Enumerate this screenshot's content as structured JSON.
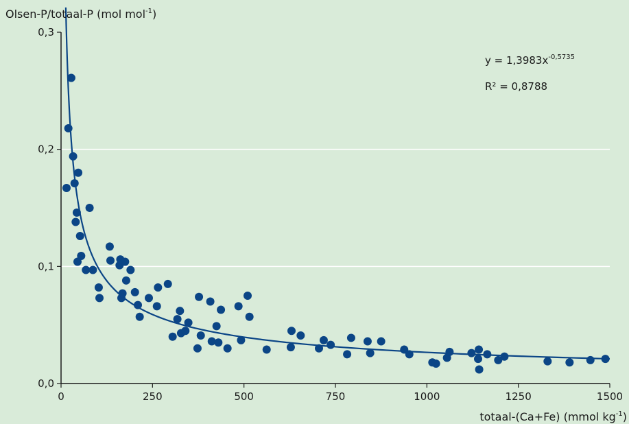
{
  "chart_data": {
    "type": "scatter",
    "ylabel": "Olsen-P/totaal-P (mol mol",
    "ylabel_sup": "-1",
    "ylabel_end": ")",
    "xlabel": "totaal-(Ca+Fe) (mmol kg",
    "xlabel_sup": "-1",
    "xlabel_end": ")",
    "xlim": [
      0,
      1500
    ],
    "ylim": [
      0,
      0.3
    ],
    "x_ticks": [
      0,
      250,
      500,
      750,
      1000,
      1250,
      1500
    ],
    "x_tick_labels": [
      "0",
      "250",
      "500",
      "750",
      "1000",
      "1250",
      "1500"
    ],
    "y_ticks": [
      0,
      0.1,
      0.2,
      0.3
    ],
    "y_tick_labels": [
      "0,0",
      "0,1",
      "0,2",
      "0,3"
    ],
    "gridlines_y": [
      0.1,
      0.2
    ],
    "equation_main": "y = 1,3983x",
    "equation_exp": "-0,5735",
    "r_squared": "R² = 0,8788",
    "fit": {
      "a": 1.3983,
      "b": -0.5735,
      "x_range": [
        13,
        1500
      ]
    },
    "colors": {
      "background": "#d9ebd9",
      "points": "#0b4586",
      "fit": "#0b4586",
      "grid": "#ffffff",
      "axis": "#1a1a1a"
    },
    "points": [
      [
        15,
        0.167
      ],
      [
        20,
        0.218
      ],
      [
        28,
        0.261
      ],
      [
        33,
        0.194
      ],
      [
        37,
        0.171
      ],
      [
        40,
        0.138
      ],
      [
        43,
        0.146
      ],
      [
        45,
        0.104
      ],
      [
        47,
        0.18
      ],
      [
        52,
        0.126
      ],
      [
        55,
        0.109
      ],
      [
        68,
        0.097
      ],
      [
        78,
        0.15
      ],
      [
        87,
        0.097
      ],
      [
        103,
        0.082
      ],
      [
        105,
        0.073
      ],
      [
        133,
        0.117
      ],
      [
        135,
        0.105
      ],
      [
        160,
        0.101
      ],
      [
        162,
        0.106
      ],
      [
        165,
        0.073
      ],
      [
        168,
        0.077
      ],
      [
        175,
        0.104
      ],
      [
        178,
        0.088
      ],
      [
        190,
        0.097
      ],
      [
        202,
        0.078
      ],
      [
        210,
        0.067
      ],
      [
        215,
        0.057
      ],
      [
        240,
        0.073
      ],
      [
        262,
        0.066
      ],
      [
        265,
        0.082
      ],
      [
        292,
        0.085
      ],
      [
        305,
        0.04
      ],
      [
        318,
        0.055
      ],
      [
        325,
        0.062
      ],
      [
        328,
        0.043
      ],
      [
        340,
        0.045
      ],
      [
        348,
        0.052
      ],
      [
        373,
        0.03
      ],
      [
        377,
        0.074
      ],
      [
        382,
        0.041
      ],
      [
        408,
        0.07
      ],
      [
        412,
        0.036
      ],
      [
        425,
        0.049
      ],
      [
        430,
        0.035
      ],
      [
        437,
        0.063
      ],
      [
        455,
        0.03
      ],
      [
        485,
        0.066
      ],
      [
        492,
        0.037
      ],
      [
        510,
        0.075
      ],
      [
        515,
        0.057
      ],
      [
        562,
        0.029
      ],
      [
        628,
        0.031
      ],
      [
        630,
        0.045
      ],
      [
        655,
        0.041
      ],
      [
        705,
        0.03
      ],
      [
        718,
        0.037
      ],
      [
        737,
        0.033
      ],
      [
        782,
        0.025
      ],
      [
        793,
        0.039
      ],
      [
        838,
        0.036
      ],
      [
        845,
        0.026
      ],
      [
        875,
        0.036
      ],
      [
        938,
        0.029
      ],
      [
        952,
        0.025
      ],
      [
        1015,
        0.018
      ],
      [
        1025,
        0.017
      ],
      [
        1055,
        0.022
      ],
      [
        1062,
        0.027
      ],
      [
        1122,
        0.026
      ],
      [
        1140,
        0.021
      ],
      [
        1142,
        0.029
      ],
      [
        1143,
        0.012
      ],
      [
        1165,
        0.025
      ],
      [
        1195,
        0.02
      ],
      [
        1212,
        0.023
      ],
      [
        1330,
        0.019
      ],
      [
        1390,
        0.018
      ],
      [
        1447,
        0.02
      ],
      [
        1488,
        0.021
      ]
    ]
  }
}
